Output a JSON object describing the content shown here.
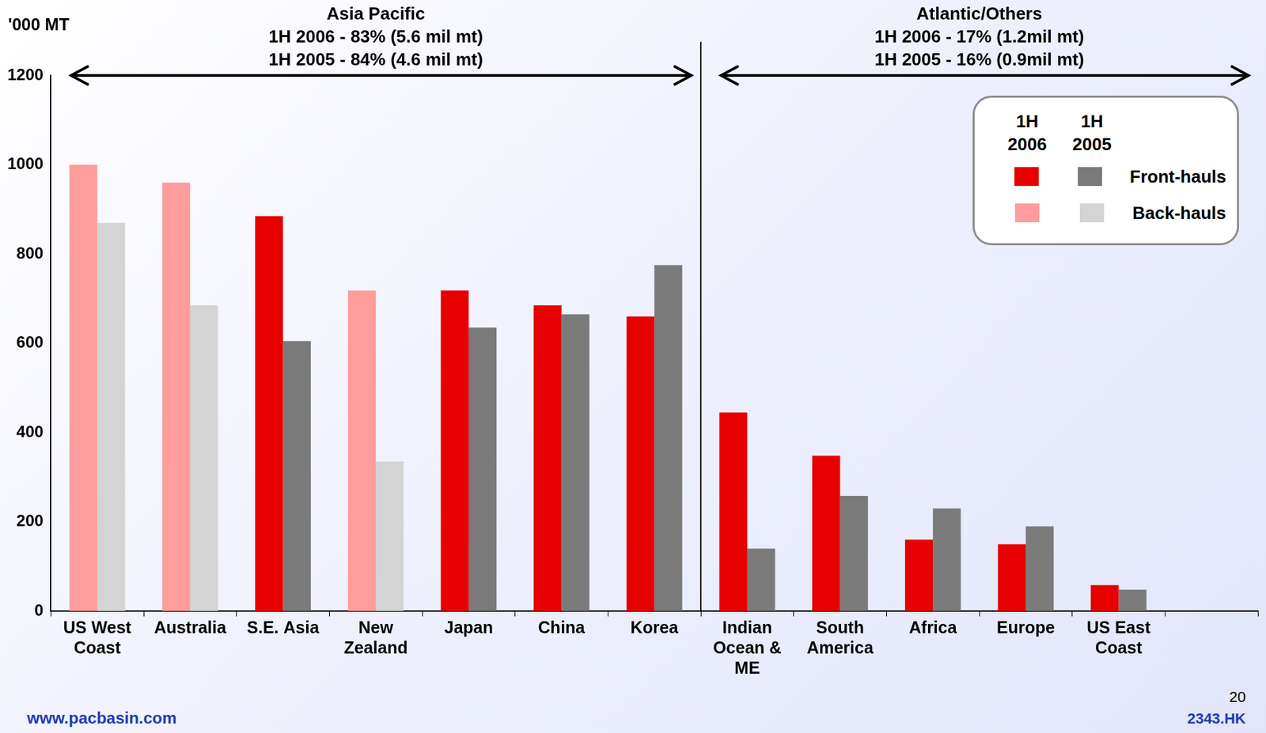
{
  "chart_data": {
    "type": "bar",
    "y_axis_title": "'000 MT",
    "categories": [
      "US West Coast",
      "Australia",
      "S.E. Asia",
      "New Zealand",
      "Japan",
      "China",
      "Korea",
      "Indian Ocean & ME",
      "South America",
      "Africa",
      "Europe",
      "US East Coast",
      null
    ],
    "series": [
      {
        "name": "1H 2006",
        "values": [
          1000,
          960,
          885,
          718,
          718,
          685,
          660,
          445,
          348,
          160,
          150,
          58,
          null
        ],
        "colors": [
          "#ff9c9c",
          "#ff9c9c",
          "#e60000",
          "#ff9c9c",
          "#e60000",
          "#e60000",
          "#e60000",
          "#e60000",
          "#e60000",
          "#e60000",
          "#e60000",
          "#e60000",
          null
        ]
      },
      {
        "name": "1H 2005",
        "values": [
          870,
          685,
          605,
          335,
          635,
          665,
          775,
          140,
          258,
          230,
          190,
          48,
          null
        ],
        "colors": [
          "#d4d4d4",
          "#d4d4d4",
          "#7a7a7a",
          "#d4d4d4",
          "#7a7a7a",
          "#7a7a7a",
          "#7a7a7a",
          "#7a7a7a",
          "#7a7a7a",
          "#7a7a7a",
          "#7a7a7a",
          "#7a7a7a",
          null
        ]
      }
    ],
    "groups": [
      {
        "title": "Asia Pacific",
        "lines": [
          "1H 2006 - 83% (5.6 mil mt)",
          "1H 2005 - 84% (4.6 mil mt)"
        ],
        "first": "US West Coast",
        "last": "Korea"
      },
      {
        "title": "Atlantic/Others",
        "lines": [
          "1H 2006 - 17% (1.2mil mt)",
          "1H 2005 - 16% (0.9mil mt)"
        ],
        "first": "Indian Ocean & ME",
        "last": "US East Coast"
      }
    ],
    "legend_rows": [
      {
        "label": "Front-hauls",
        "colors": [
          "#e60000",
          "#7a7a7a"
        ]
      },
      {
        "label": "Back-hauls",
        "colors": [
          "#ff9c9c",
          "#d4d4d4"
        ]
      }
    ],
    "ylim": [
      0,
      1200
    ],
    "yticks": [
      0,
      200,
      400,
      600,
      800,
      1000,
      1200
    ],
    "grid": false,
    "legend": "upper right",
    "footer": {
      "left": "www.pacbasin.com",
      "page": "20",
      "ticker": "2343.HK"
    }
  }
}
